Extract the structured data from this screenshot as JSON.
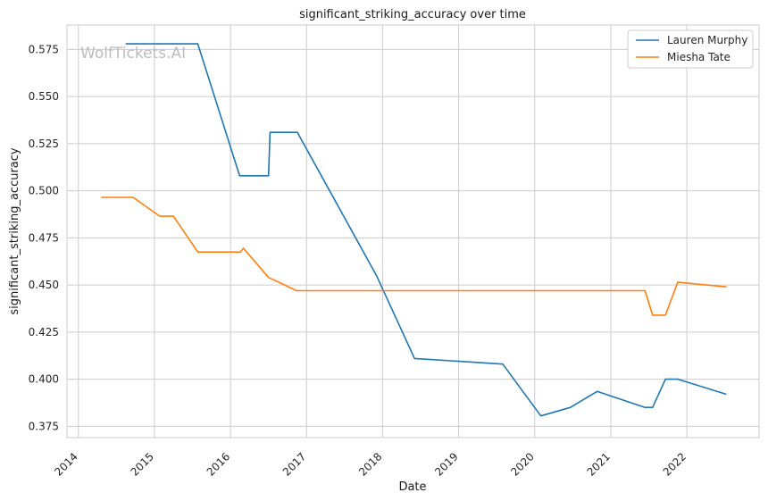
{
  "chart_data": {
    "type": "line",
    "title": "significant_striking_accuracy over time",
    "xlabel": "Date",
    "ylabel": "significant_striking_accuracy",
    "watermark": "WolfTickets.AI",
    "legend_position": "top-right",
    "grid": true,
    "xlim": [
      2013.85,
      2022.95
    ],
    "ylim": [
      0.369,
      0.588
    ],
    "x_ticks": [
      2014,
      2015,
      2016,
      2017,
      2018,
      2019,
      2020,
      2021,
      2022
    ],
    "x_tick_labels": [
      "2014",
      "2015",
      "2016",
      "2017",
      "2018",
      "2019",
      "2020",
      "2021",
      "2022"
    ],
    "y_ticks": [
      0.375,
      0.4,
      0.425,
      0.45,
      0.475,
      0.5,
      0.525,
      0.55,
      0.575
    ],
    "y_tick_labels": [
      "0.375",
      "0.400",
      "0.425",
      "0.450",
      "0.475",
      "0.500",
      "0.525",
      "0.550",
      "0.575"
    ],
    "series": [
      {
        "name": "Lauren Murphy",
        "color": "#1f77b4",
        "x": [
          2014.62,
          2015.57,
          2016.12,
          2016.5,
          2016.52,
          2016.88,
          2017.92,
          2018.42,
          2019.58,
          2020.08,
          2020.47,
          2020.82,
          2021.45,
          2021.55,
          2021.72,
          2021.88,
          2022.52
        ],
        "y": [
          0.578,
          0.578,
          0.508,
          0.508,
          0.531,
          0.531,
          0.455,
          0.411,
          0.408,
          0.3805,
          0.385,
          0.3935,
          0.385,
          0.385,
          0.4,
          0.4,
          0.392
        ]
      },
      {
        "name": "Miesha Tate",
        "color": "#ff7f0e",
        "x": [
          2014.3,
          2014.72,
          2015.07,
          2015.25,
          2015.57,
          2016.13,
          2016.17,
          2016.5,
          2016.87,
          2021.45,
          2021.55,
          2021.72,
          2021.88,
          2022.52
        ],
        "y": [
          0.4965,
          0.4965,
          0.4865,
          0.4865,
          0.4675,
          0.4675,
          0.4695,
          0.454,
          0.447,
          0.447,
          0.434,
          0.434,
          0.4515,
          0.449
        ]
      }
    ]
  }
}
